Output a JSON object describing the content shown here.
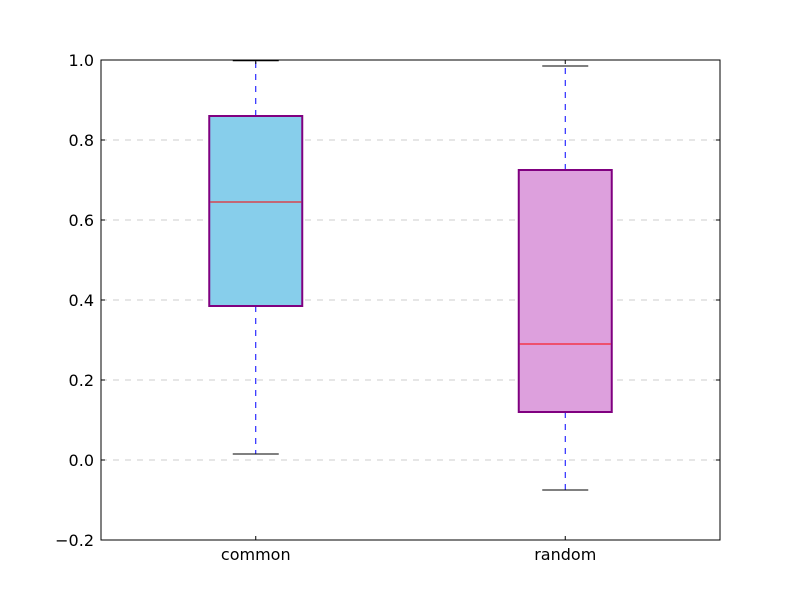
{
  "chart_data": {
    "type": "box",
    "categories": [
      "common",
      "random"
    ],
    "boxes": [
      {
        "category": "common",
        "whisker_low": 0.015,
        "q1": 0.385,
        "median": 0.645,
        "q3": 0.86,
        "whisker_high": 0.998,
        "fill": "#87ceeb"
      },
      {
        "category": "random",
        "whisker_low": -0.075,
        "q1": 0.12,
        "median": 0.29,
        "q3": 0.725,
        "whisker_high": 0.985,
        "fill": "#dda0dd"
      }
    ],
    "ylim": [
      -0.2,
      1.0
    ],
    "yticks": [
      -0.2,
      0.0,
      0.2,
      0.4,
      0.6,
      0.8,
      1.0
    ],
    "ytick_labels": [
      "−0.2",
      "0.0",
      "0.2",
      "0.4",
      "0.6",
      "0.8",
      "1.0"
    ],
    "grid": "y-dashed",
    "colors": {
      "box_edge": "#800080",
      "median": "#ff0000",
      "whisker": "#0000ff",
      "cap": "#000000",
      "grid": "#cccccc"
    }
  }
}
